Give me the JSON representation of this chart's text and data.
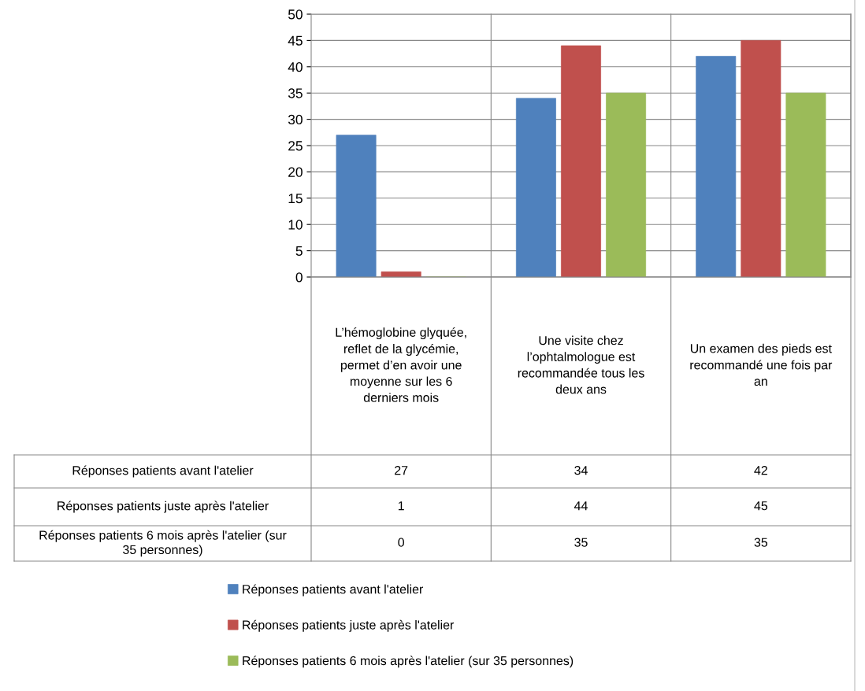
{
  "chart_data": {
    "type": "bar",
    "categories": [
      "L’hémoglobine glyquée, reflet de la glycémie, permet d’en avoir une moyenne sur les 6 derniers mois",
      "Une visite chez l’ophtalmologue est recommandée tous les deux ans",
      "Un examen des pieds est recommandé une fois par an"
    ],
    "series": [
      {
        "name": "Réponses patients avant l'atelier",
        "color": "#4f81bd",
        "values": [
          27,
          34,
          42
        ]
      },
      {
        "name": "Réponses patients juste après l'atelier",
        "color": "#c0504d",
        "values": [
          1,
          44,
          45
        ]
      },
      {
        "name": "Réponses patients 6 mois après l'atelier (sur 35 personnes)",
        "color": "#9bbb59",
        "values": [
          0,
          35,
          35
        ]
      }
    ],
    "ylim": [
      0,
      50
    ],
    "yticks": [
      0,
      5,
      10,
      15,
      20,
      25,
      30,
      35,
      40,
      45,
      50
    ],
    "grid": "y",
    "legend": "bottom",
    "data_labels": true
  }
}
